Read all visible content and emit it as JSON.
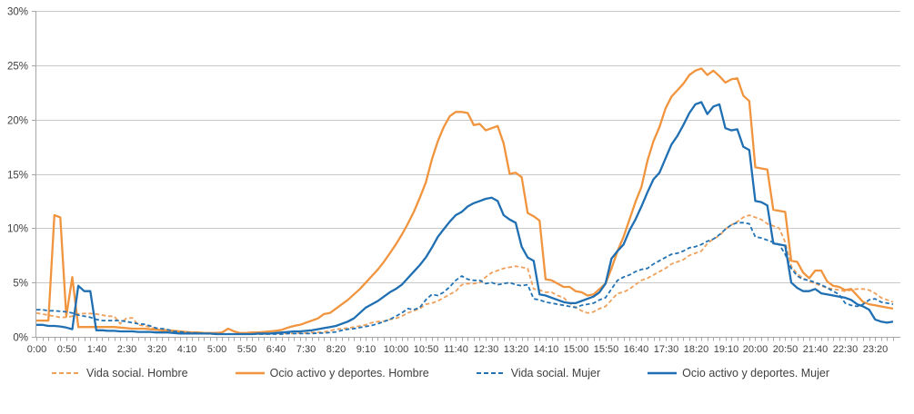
{
  "chart_data": {
    "type": "line",
    "title": "",
    "xlabel": "",
    "ylabel": "",
    "ylim": [
      0,
      30
    ],
    "y_step_percent": 5,
    "grid": "horizontal",
    "legend_position": "bottom",
    "x_minutes_step": 10,
    "x_start": "0:00",
    "x_tick_labels": [
      "0:00",
      "0:50",
      "1:40",
      "2:30",
      "3:20",
      "4:10",
      "5:00",
      "5:50",
      "6:40",
      "7:30",
      "8:20",
      "9:10",
      "10:00",
      "10:50",
      "11:40",
      "12:30",
      "13:20",
      "14:10",
      "15:00",
      "15:50",
      "16:40",
      "17:30",
      "18:20",
      "19:10",
      "20:00",
      "20:50",
      "21:40",
      "22:30",
      "23:20"
    ],
    "y_tick_labels": [
      "30%",
      "25%",
      "20%",
      "15%",
      "10%",
      "5%",
      "0%"
    ],
    "colors": {
      "orange_dashed": "#EFA05B",
      "orange_solid": "#F0943E",
      "blue_dashed": "#2373B4",
      "blue_solid": "#1F6FB2",
      "gridline": "#C9C9C9",
      "axis": "#A6A6A6",
      "tick_text": "#3F3F3F"
    },
    "series": [
      {
        "name": "Vida social. Hombre",
        "style": "dashed",
        "color": "#EFA05B",
        "values": [
          2.2,
          2.1,
          2.0,
          1.9,
          1.8,
          1.8,
          1.9,
          2.1,
          2.15,
          2.15,
          2.1,
          2.0,
          1.9,
          1.9,
          1.2,
          1.7,
          1.75,
          1.1,
          1.0,
          0.9,
          0.7,
          0.6,
          0.5,
          0.45,
          0.4,
          0.35,
          0.3,
          0.3,
          0.3,
          0.25,
          0.25,
          0.25,
          0.25,
          0.25,
          0.25,
          0.25,
          0.25,
          0.25,
          0.25,
          0.3,
          0.3,
          0.3,
          0.3,
          0.3,
          0.35,
          0.35,
          0.4,
          0.4,
          0.45,
          0.55,
          0.7,
          0.75,
          0.8,
          0.9,
          1.0,
          1.1,
          1.3,
          1.4,
          1.45,
          1.6,
          1.7,
          1.9,
          2.2,
          2.4,
          2.6,
          3.0,
          3.1,
          3.3,
          3.6,
          3.9,
          4.2,
          4.8,
          4.9,
          4.9,
          5.0,
          5.5,
          5.9,
          6.1,
          6.3,
          6.4,
          6.5,
          6.4,
          6.3,
          4.4,
          4.3,
          4.1,
          4.1,
          3.8,
          3.6,
          3.1,
          2.7,
          2.4,
          2.2,
          2.3,
          2.6,
          2.8,
          3.4,
          4.0,
          4.1,
          4.4,
          4.8,
          5.2,
          5.4,
          5.7,
          6.0,
          6.3,
          6.7,
          6.9,
          7.1,
          7.5,
          7.7,
          7.9,
          8.6,
          9.0,
          9.3,
          9.9,
          10.3,
          10.6,
          11.0,
          11.2,
          11.0,
          10.8,
          10.4,
          10.2,
          10.0,
          8.7,
          6.5,
          5.8,
          5.4,
          5.1,
          4.9,
          4.7,
          4.5,
          4.4,
          4.3,
          4.2,
          4.3,
          4.4,
          4.4,
          4.3,
          4.0,
          3.6,
          3.4,
          3.2
        ]
      },
      {
        "name": "Ocio activo y deportes. Hombre",
        "style": "solid",
        "color": "#F0943E",
        "values": [
          1.5,
          1.5,
          1.5,
          11.2,
          11.0,
          1.9,
          5.5,
          0.9,
          0.9,
          0.9,
          0.9,
          0.9,
          0.9,
          0.9,
          0.85,
          0.8,
          0.75,
          0.75,
          0.75,
          0.7,
          0.65,
          0.6,
          0.6,
          0.55,
          0.5,
          0.45,
          0.4,
          0.4,
          0.35,
          0.35,
          0.35,
          0.4,
          0.75,
          0.5,
          0.35,
          0.35,
          0.4,
          0.4,
          0.45,
          0.5,
          0.55,
          0.65,
          0.85,
          1.0,
          1.1,
          1.3,
          1.5,
          1.7,
          2.1,
          2.2,
          2.6,
          3.0,
          3.4,
          3.9,
          4.4,
          5.0,
          5.6,
          6.2,
          6.9,
          7.7,
          8.5,
          9.4,
          10.4,
          11.5,
          12.8,
          14.2,
          16.3,
          18.0,
          19.3,
          20.3,
          20.7,
          20.7,
          20.6,
          19.5,
          19.6,
          19.0,
          19.2,
          19.4,
          17.8,
          15.0,
          15.1,
          14.7,
          11.4,
          11.1,
          10.7,
          5.3,
          5.2,
          4.9,
          4.6,
          4.6,
          4.2,
          4.1,
          3.8,
          3.9,
          4.4,
          4.9,
          6.3,
          7.9,
          9.2,
          10.8,
          12.4,
          13.8,
          16.2,
          18.0,
          19.3,
          21.0,
          22.1,
          22.7,
          23.3,
          24.1,
          24.5,
          24.7,
          24.1,
          24.5,
          24.0,
          23.4,
          23.7,
          23.8,
          22.2,
          21.7,
          15.6,
          15.5,
          15.4,
          11.7,
          11.6,
          11.5,
          7.0,
          6.9,
          5.9,
          5.4,
          6.1,
          6.1,
          5.1,
          4.7,
          4.6,
          4.3,
          4.4,
          3.8,
          3.2,
          3.0,
          2.9,
          2.8,
          2.7,
          2.6
        ]
      },
      {
        "name": "Vida social. Mujer",
        "style": "dashed",
        "color": "#2373B4",
        "values": [
          2.5,
          2.5,
          2.4,
          2.4,
          2.35,
          2.3,
          2.2,
          2.0,
          1.9,
          1.8,
          1.6,
          1.5,
          1.5,
          1.5,
          1.5,
          1.4,
          1.3,
          1.2,
          1.15,
          1.0,
          0.8,
          0.75,
          0.65,
          0.5,
          0.45,
          0.4,
          0.35,
          0.35,
          0.3,
          0.3,
          0.3,
          0.25,
          0.25,
          0.25,
          0.25,
          0.25,
          0.25,
          0.25,
          0.25,
          0.25,
          0.25,
          0.25,
          0.3,
          0.3,
          0.3,
          0.3,
          0.3,
          0.35,
          0.35,
          0.4,
          0.45,
          0.6,
          0.7,
          0.75,
          0.85,
          0.95,
          1.05,
          1.2,
          1.4,
          1.6,
          1.9,
          2.2,
          2.6,
          2.5,
          2.7,
          3.4,
          3.9,
          3.8,
          4.1,
          4.6,
          5.2,
          5.6,
          5.3,
          5.2,
          5.2,
          4.9,
          5.0,
          4.8,
          4.9,
          5.0,
          4.8,
          4.7,
          4.8,
          3.5,
          3.4,
          3.2,
          3.1,
          3.0,
          2.9,
          2.8,
          2.7,
          2.9,
          3.0,
          3.1,
          3.4,
          3.6,
          4.4,
          5.2,
          5.5,
          5.7,
          6.0,
          6.2,
          6.3,
          6.7,
          7.0,
          7.3,
          7.6,
          7.7,
          7.9,
          8.2,
          8.3,
          8.5,
          8.8,
          9.0,
          9.4,
          9.9,
          10.3,
          10.5,
          10.5,
          10.4,
          9.2,
          9.1,
          8.9,
          8.7,
          8.5,
          7.6,
          6.3,
          5.6,
          5.3,
          5.2,
          5.0,
          4.8,
          4.5,
          4.2,
          3.9,
          3.1,
          2.9,
          2.8,
          3.0,
          3.4,
          3.5,
          3.2,
          3.1,
          3.0
        ]
      },
      {
        "name": "Ocio activo y deportes. Mujer",
        "style": "solid",
        "color": "#1F6FB2",
        "values": [
          1.1,
          1.1,
          1.0,
          1.0,
          0.95,
          0.85,
          0.7,
          4.7,
          4.2,
          4.2,
          0.6,
          0.6,
          0.55,
          0.55,
          0.5,
          0.5,
          0.5,
          0.45,
          0.45,
          0.45,
          0.4,
          0.4,
          0.4,
          0.35,
          0.3,
          0.3,
          0.3,
          0.3,
          0.3,
          0.3,
          0.25,
          0.25,
          0.25,
          0.25,
          0.25,
          0.25,
          0.25,
          0.3,
          0.3,
          0.3,
          0.35,
          0.4,
          0.45,
          0.5,
          0.5,
          0.55,
          0.6,
          0.7,
          0.8,
          0.9,
          1.0,
          1.2,
          1.4,
          1.7,
          2.2,
          2.7,
          3.0,
          3.3,
          3.7,
          4.1,
          4.4,
          4.8,
          5.4,
          6.0,
          6.6,
          7.3,
          8.2,
          9.2,
          9.9,
          10.6,
          11.2,
          11.5,
          12.0,
          12.3,
          12.5,
          12.7,
          12.8,
          12.5,
          11.2,
          10.8,
          10.5,
          8.3,
          7.3,
          7.0,
          3.9,
          3.8,
          3.6,
          3.4,
          3.2,
          3.1,
          3.1,
          3.3,
          3.5,
          3.7,
          4.1,
          4.9,
          7.2,
          7.9,
          8.5,
          9.8,
          10.8,
          12.0,
          13.3,
          14.5,
          15.1,
          16.4,
          17.7,
          18.5,
          19.5,
          20.6,
          21.4,
          21.6,
          20.5,
          21.2,
          21.4,
          19.2,
          19.0,
          19.1,
          17.5,
          17.2,
          12.5,
          12.4,
          12.1,
          8.6,
          8.5,
          8.4,
          5.0,
          4.5,
          4.2,
          4.2,
          4.4,
          4.0,
          3.9,
          3.8,
          3.7,
          3.6,
          3.4,
          3.0,
          2.8,
          2.5,
          1.6,
          1.4,
          1.3,
          1.4
        ]
      }
    ]
  }
}
